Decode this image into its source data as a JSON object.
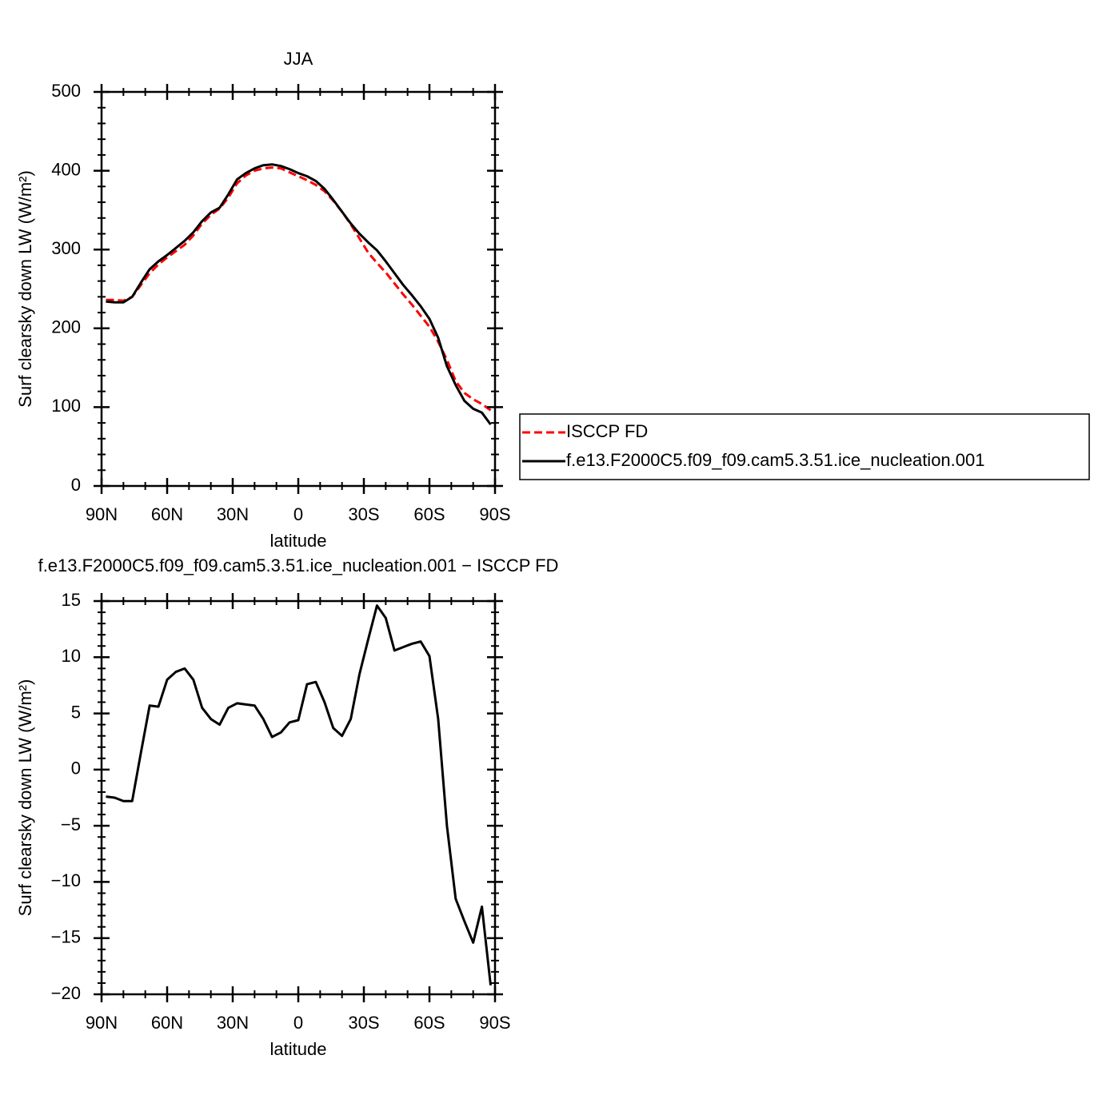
{
  "chart_data": [
    {
      "type": "line",
      "title": "JJA",
      "xlabel": "latitude",
      "ylabel": "Surf clearsky down LW (W/m²)",
      "x": [
        88,
        84,
        80,
        76,
        72,
        68,
        64,
        60,
        56,
        52,
        48,
        44,
        40,
        36,
        32,
        28,
        24,
        20,
        16,
        12,
        8,
        4,
        0,
        -4,
        -8,
        -12,
        -16,
        -20,
        -24,
        -28,
        -32,
        -36,
        -40,
        -44,
        -48,
        -52,
        -56,
        -60,
        -64,
        -68,
        -72,
        -76,
        -80,
        -84,
        -88
      ],
      "xlim": [
        90,
        -90
      ],
      "xticks": [
        {
          "value": 90,
          "label": "90N"
        },
        {
          "value": 60,
          "label": "60N"
        },
        {
          "value": 30,
          "label": "30N"
        },
        0,
        {
          "value": -30,
          "label": "30S"
        },
        {
          "value": -60,
          "label": "60S"
        },
        {
          "value": -90,
          "label": "90S"
        }
      ],
      "ylim": [
        0,
        500
      ],
      "yticks": [
        0,
        100,
        200,
        300,
        400,
        500
      ],
      "legend_position": "right",
      "series": [
        {
          "name": "ISCCP FD",
          "color": "#ff0000",
          "dashed": true,
          "values": [
            236,
            236,
            235,
            240,
            255,
            270,
            281,
            290,
            298,
            306,
            318,
            333,
            344,
            352,
            366,
            384,
            394,
            400,
            403,
            404,
            403,
            398,
            393,
            388,
            382,
            374,
            362,
            348,
            332,
            314,
            296,
            283,
            271,
            257,
            243,
            230,
            216,
            202,
            183,
            160,
            133,
            118,
            110,
            104,
            96
          ]
        },
        {
          "name": "f.e13.F2000C5.f09_f09.cam5.3.51.ice_nucleation.001",
          "color": "#000000",
          "dashed": false,
          "values": [
            234,
            233,
            233,
            240,
            258,
            275,
            285,
            293,
            302,
            311,
            322,
            336,
            347,
            353,
            370,
            389,
            397,
            403,
            407,
            408,
            406,
            402,
            397,
            393,
            387,
            377,
            363,
            348,
            333,
            320,
            309,
            299,
            285,
            270,
            255,
            242,
            228,
            212,
            188,
            152,
            128,
            108,
            98,
            93,
            78
          ]
        }
      ]
    },
    {
      "type": "line",
      "title": "f.e13.F2000C5.f09_f09.cam5.3.51.ice_nucleation.001 − ISCCP FD",
      "xlabel": "latitude",
      "ylabel": "Surf clearsky down LW (W/m²)",
      "x": [
        88,
        84,
        80,
        76,
        72,
        68,
        64,
        60,
        56,
        52,
        48,
        44,
        40,
        36,
        32,
        28,
        24,
        20,
        16,
        12,
        8,
        4,
        0,
        -4,
        -8,
        -12,
        -16,
        -20,
        -24,
        -28,
        -32,
        -36,
        -40,
        -44,
        -48,
        -52,
        -56,
        -60,
        -64,
        -68,
        -72,
        -76,
        -80,
        -84,
        -88
      ],
      "xlim": [
        90,
        -90
      ],
      "xticks": [
        {
          "value": 90,
          "label": "90N"
        },
        {
          "value": 60,
          "label": "60N"
        },
        {
          "value": 30,
          "label": "30N"
        },
        0,
        {
          "value": -30,
          "label": "30S"
        },
        {
          "value": -60,
          "label": "60S"
        },
        {
          "value": -90,
          "label": "90S"
        }
      ],
      "ylim": [
        -20,
        15
      ],
      "yticks": [
        {
          "value": -20,
          "label": "−20"
        },
        {
          "value": -15,
          "label": "−15"
        },
        {
          "value": -10,
          "label": "−10"
        },
        {
          "value": -5,
          "label": "−5"
        },
        0,
        5,
        10,
        15
      ],
      "series": [
        {
          "color": "#000000",
          "dashed": false,
          "values": [
            -2.4,
            -2.5,
            -2.8,
            -2.8,
            1.5,
            5.7,
            5.6,
            8.0,
            8.7,
            9.0,
            8.0,
            5.5,
            4.5,
            4.0,
            5.5,
            5.9,
            5.8,
            5.7,
            4.5,
            2.9,
            3.3,
            4.2,
            4.4,
            7.6,
            7.8,
            6.0,
            3.7,
            3.0,
            4.5,
            8.5,
            11.6,
            14.6,
            13.5,
            10.6,
            10.9,
            11.2,
            11.4,
            10.1,
            4.5,
            -5.0,
            -11.5,
            -13.5,
            -15.4,
            -12.2,
            -19.2
          ]
        }
      ]
    }
  ]
}
